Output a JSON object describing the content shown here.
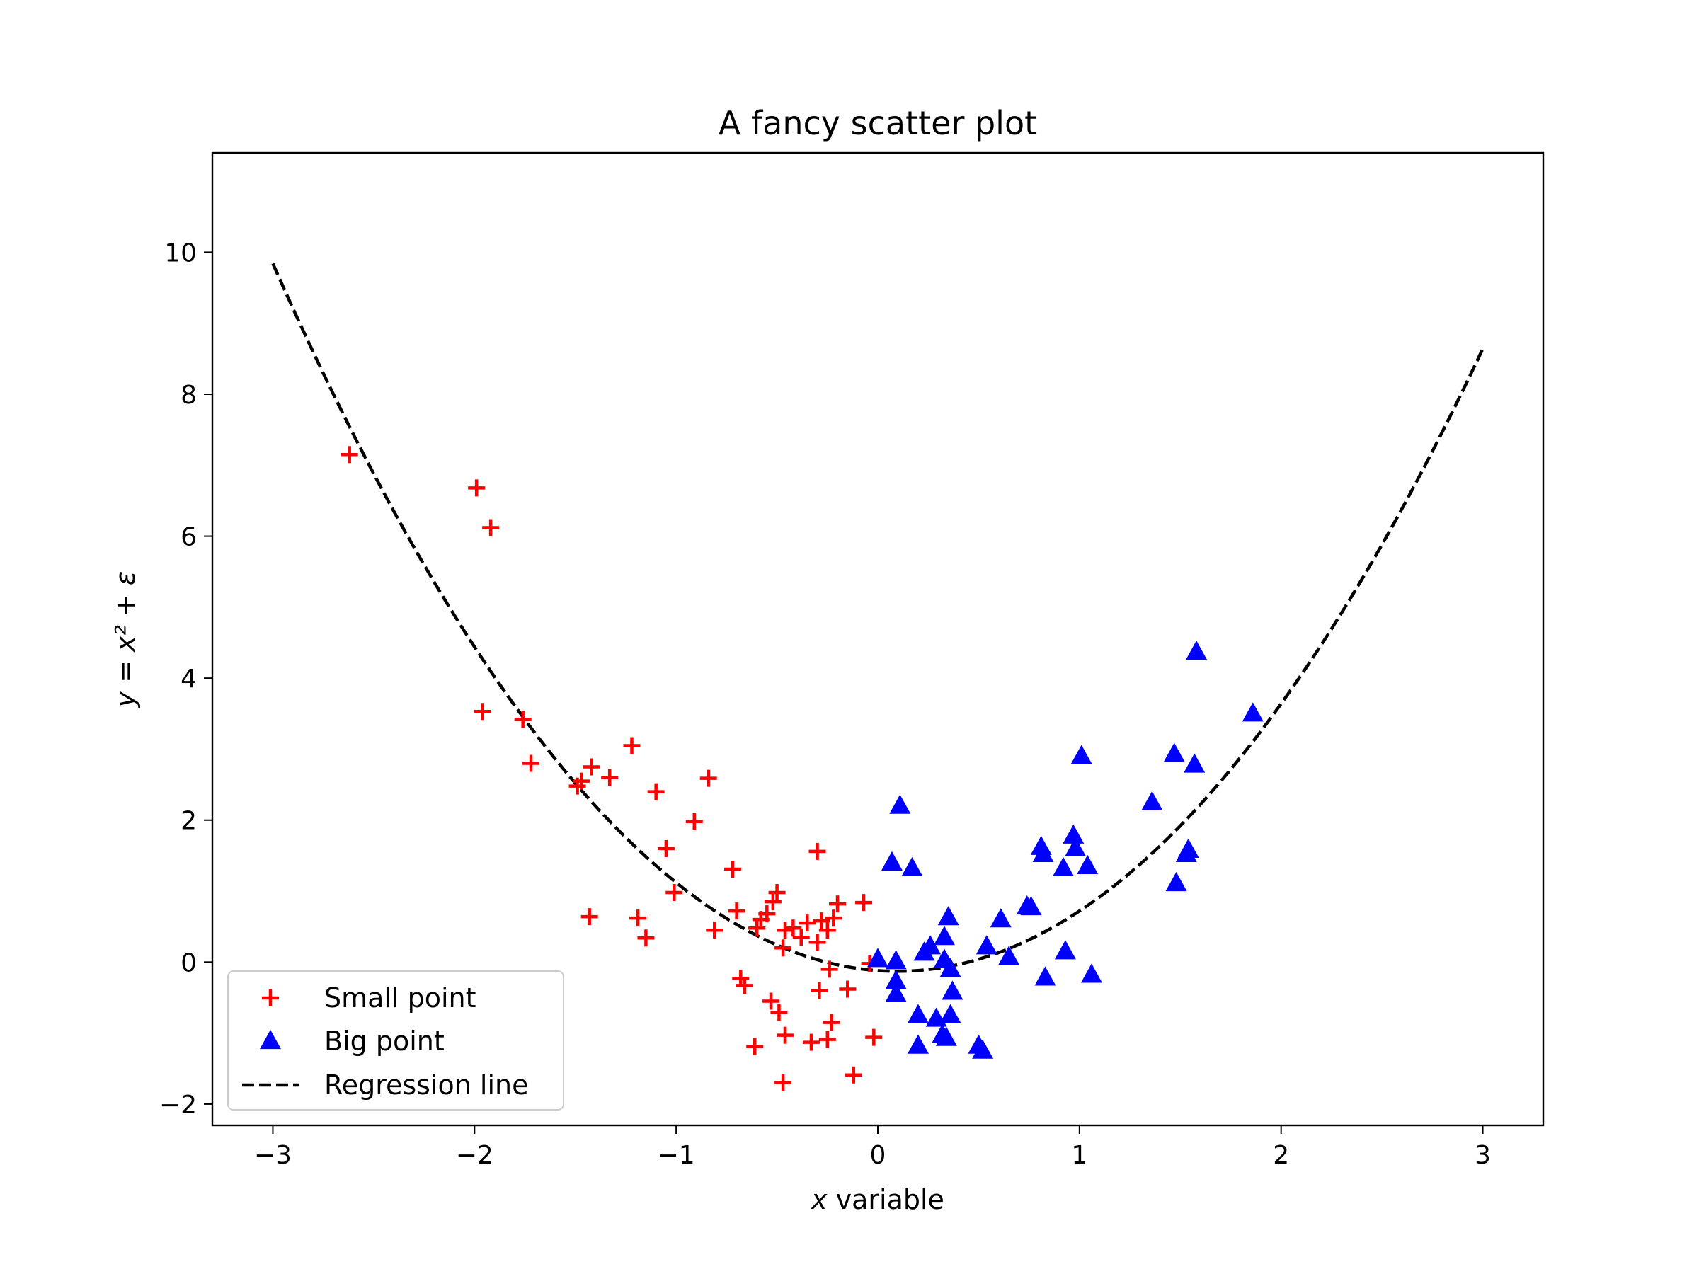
{
  "chart_data": {
    "type": "scatter",
    "title": "A fancy scatter plot",
    "xlabel_var": "x",
    "xlabel_rest": " variable",
    "ylabel": "y = x² + ε",
    "xlim": [
      -3.3,
      3.3
    ],
    "ylim": [
      -2.3,
      11.4
    ],
    "xticks": [
      -3,
      -2,
      -1,
      0,
      1,
      2,
      3
    ],
    "xtick_labels": [
      "−3",
      "−2",
      "−1",
      "0",
      "1",
      "2",
      "3"
    ],
    "yticks": [
      -2,
      0,
      2,
      4,
      6,
      8,
      10
    ],
    "ytick_labels": [
      "−2",
      "0",
      "2",
      "4",
      "6",
      "8",
      "10"
    ],
    "grid": false,
    "legend_position": "lower-left",
    "series": [
      {
        "name": "Small point",
        "marker": "plus",
        "color": "#ff0000",
        "points": [
          [
            -2.62,
            7.15
          ],
          [
            -1.99,
            6.68
          ],
          [
            -1.92,
            6.12
          ],
          [
            -1.96,
            3.53
          ],
          [
            -1.76,
            3.42
          ],
          [
            -1.72,
            2.8
          ],
          [
            -1.49,
            2.48
          ],
          [
            -1.47,
            2.55
          ],
          [
            -1.42,
            2.75
          ],
          [
            -1.33,
            2.6
          ],
          [
            -1.22,
            3.05
          ],
          [
            -1.1,
            2.4
          ],
          [
            -0.84,
            2.59
          ],
          [
            -0.91,
            1.98
          ],
          [
            -1.05,
            1.6
          ],
          [
            -1.01,
            0.98
          ],
          [
            -1.43,
            0.64
          ],
          [
            -1.19,
            0.62
          ],
          [
            -1.15,
            0.34
          ],
          [
            -0.72,
            1.31
          ],
          [
            -0.7,
            0.72
          ],
          [
            -0.81,
            0.45
          ],
          [
            -0.6,
            0.48
          ],
          [
            -0.58,
            0.6
          ],
          [
            -0.55,
            0.68
          ],
          [
            -0.52,
            0.85
          ],
          [
            -0.5,
            0.98
          ],
          [
            -0.46,
            0.45
          ],
          [
            -0.42,
            0.48
          ],
          [
            -0.38,
            0.35
          ],
          [
            -0.35,
            0.55
          ],
          [
            -0.3,
            0.28
          ],
          [
            -0.28,
            0.58
          ],
          [
            -0.22,
            0.62
          ],
          [
            -0.2,
            0.82
          ],
          [
            -0.3,
            1.56
          ],
          [
            -0.07,
            0.84
          ],
          [
            -0.25,
            0.45
          ],
          [
            -0.47,
            0.2
          ],
          [
            -0.68,
            -0.23
          ],
          [
            -0.66,
            -0.33
          ],
          [
            -0.53,
            -0.55
          ],
          [
            -0.49,
            -0.71
          ],
          [
            -0.46,
            -1.03
          ],
          [
            -0.29,
            -0.4
          ],
          [
            -0.24,
            -0.1
          ],
          [
            -0.15,
            -0.38
          ],
          [
            -0.23,
            -0.85
          ],
          [
            -0.25,
            -1.09
          ],
          [
            -0.33,
            -1.13
          ],
          [
            -0.61,
            -1.19
          ],
          [
            -0.02,
            -1.06
          ],
          [
            -0.12,
            -1.59
          ],
          [
            -0.47,
            -1.7
          ],
          [
            -0.04,
            -0.02
          ]
        ]
      },
      {
        "name": "Big point",
        "marker": "triangle",
        "color": "#0000ff",
        "points": [
          [
            1.58,
            4.37
          ],
          [
            1.86,
            3.5
          ],
          [
            1.01,
            2.9
          ],
          [
            1.47,
            2.93
          ],
          [
            1.57,
            2.78
          ],
          [
            1.36,
            2.25
          ],
          [
            0.11,
            2.2
          ],
          [
            0.81,
            1.62
          ],
          [
            0.82,
            1.52
          ],
          [
            0.97,
            1.78
          ],
          [
            0.98,
            1.6
          ],
          [
            0.92,
            1.32
          ],
          [
            1.04,
            1.35
          ],
          [
            1.53,
            1.52
          ],
          [
            1.54,
            1.58
          ],
          [
            1.48,
            1.11
          ],
          [
            0.07,
            1.4
          ],
          [
            0.17,
            1.32
          ],
          [
            0.76,
            0.77
          ],
          [
            0.74,
            0.78
          ],
          [
            0.61,
            0.6
          ],
          [
            0.35,
            0.63
          ],
          [
            0.33,
            0.35
          ],
          [
            0.54,
            0.22
          ],
          [
            0.65,
            0.07
          ],
          [
            0.93,
            0.15
          ],
          [
            0.0,
            0.04
          ],
          [
            0.09,
            0.01
          ],
          [
            0.26,
            0.22
          ],
          [
            0.23,
            0.13
          ],
          [
            0.33,
            0.03
          ],
          [
            0.36,
            -0.1
          ],
          [
            0.09,
            -0.27
          ],
          [
            0.09,
            -0.45
          ],
          [
            0.83,
            -0.22
          ],
          [
            1.06,
            -0.18
          ],
          [
            0.37,
            -0.42
          ],
          [
            0.2,
            -0.75
          ],
          [
            0.29,
            -0.8
          ],
          [
            0.36,
            -0.75
          ],
          [
            0.32,
            -1.03
          ],
          [
            0.34,
            -1.07
          ],
          [
            0.2,
            -1.18
          ],
          [
            0.5,
            -1.18
          ],
          [
            0.52,
            -1.25
          ]
        ]
      },
      {
        "name": "Regression line",
        "type": "line",
        "style": "dashed",
        "color": "#000000",
        "coefficients": {
          "a": 1.04,
          "b": -0.2,
          "c": -0.12
        },
        "x_range": [
          -3,
          3
        ]
      }
    ]
  }
}
